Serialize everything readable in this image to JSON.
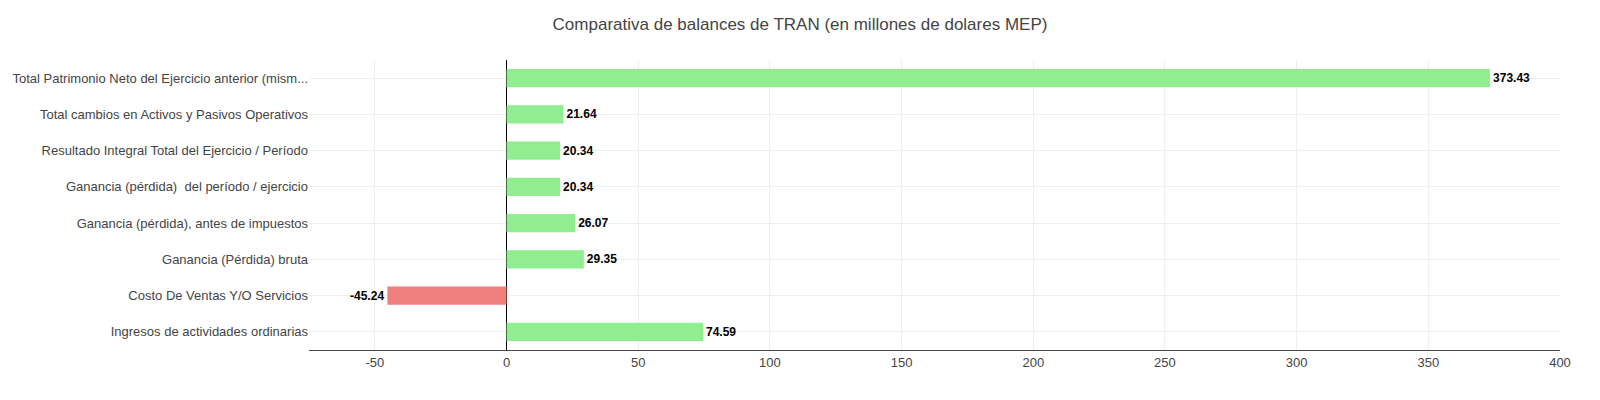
{
  "chart_data": {
    "type": "bar",
    "orientation": "horizontal",
    "title": "Comparativa de balances de TRAN (en millones de dolares MEP)",
    "categories": [
      "Total Patrimonio Neto del Ejercicio anterior (mism...",
      "Total cambios en Activos y Pasivos Operativos",
      "Resultado Integral Total del Ejercicio / Período",
      "Ganancia (pérdida)  del período / ejercicio",
      "Ganancia (pérdida), antes de impuestos",
      "Ganancia (Pérdida) bruta",
      "Costo De Ventas Y/O Servicios",
      "Ingresos de actividades ordinarias"
    ],
    "values": [
      373.43,
      21.64,
      20.34,
      20.34,
      26.07,
      29.35,
      -45.24,
      74.59
    ],
    "colors": [
      "#90EE90",
      "#90EE90",
      "#90EE90",
      "#90EE90",
      "#90EE90",
      "#90EE90",
      "#F08080",
      "#90EE90"
    ],
    "xlim": [
      -75,
      400
    ],
    "xticks": [
      -50,
      0,
      50,
      100,
      150,
      200,
      250,
      300,
      350,
      400
    ],
    "grid": true,
    "data_labels": true
  }
}
